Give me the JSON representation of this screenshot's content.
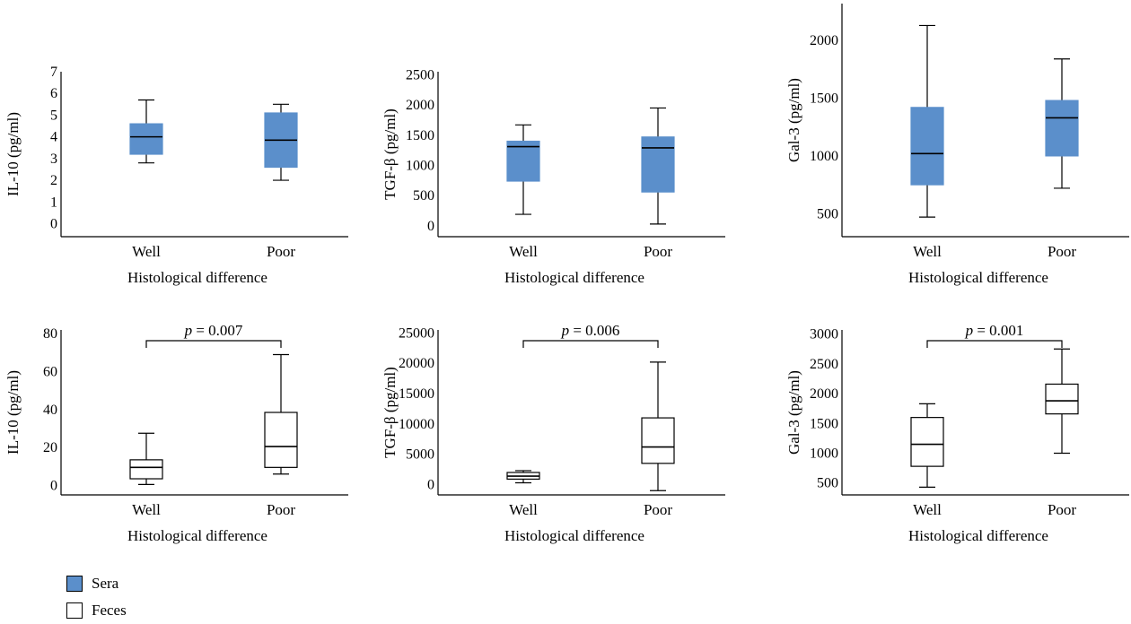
{
  "colors": {
    "sera": "#5b8fcb",
    "feces": "#ffffff",
    "stroke": "#000000"
  },
  "legend": {
    "items": [
      {
        "label": "Sera",
        "color": "#5b8fcb"
      },
      {
        "label": "Feces",
        "color": "#ffffff"
      }
    ]
  },
  "chart_data": [
    {
      "type": "box",
      "group": "sera",
      "ylabel": "IL-10 (pg/ml)",
      "xlabel": "Histological difference",
      "categories": [
        "Well",
        "Poor"
      ],
      "ylim": [
        -0.6,
        7
      ],
      "yticks": [
        0,
        1,
        2,
        3,
        4,
        5,
        6,
        7
      ],
      "boxes": [
        {
          "category": "Well",
          "min": 2.8,
          "q1": 3.2,
          "median": 4.0,
          "q3": 4.6,
          "max": 5.7
        },
        {
          "category": "Poor",
          "min": 2.0,
          "q1": 2.6,
          "median": 3.85,
          "q3": 5.1,
          "max": 5.5
        }
      ],
      "annotation": null
    },
    {
      "type": "box",
      "group": "sera",
      "ylabel": "TGF-β (pg/ml)",
      "xlabel": "Histological difference",
      "categories": [
        "Well",
        "Poor"
      ],
      "ylim": [
        -180,
        2550
      ],
      "yticks": [
        0,
        500,
        1000,
        1500,
        2000,
        2500
      ],
      "boxes": [
        {
          "category": "Well",
          "min": 190,
          "q1": 740,
          "median": 1310,
          "q3": 1400,
          "max": 1670
        },
        {
          "category": "Poor",
          "min": 30,
          "q1": 560,
          "median": 1290,
          "q3": 1470,
          "max": 1950
        }
      ],
      "annotation": null
    },
    {
      "type": "box",
      "group": "sera",
      "ylabel": "Gal-3 (pg/ml)",
      "xlabel": "Histological difference",
      "categories": [
        "Well",
        "Poor"
      ],
      "ylim": [
        300,
        2320
      ],
      "yticks": [
        500,
        1000,
        1500,
        2000
      ],
      "boxes": [
        {
          "category": "Well",
          "min": 470,
          "q1": 750,
          "median": 1020,
          "q3": 1420,
          "max": 2130
        },
        {
          "category": "Poor",
          "min": 720,
          "q1": 1000,
          "median": 1330,
          "q3": 1480,
          "max": 1840
        }
      ],
      "annotation": null
    },
    {
      "type": "box",
      "group": "feces",
      "ylabel": "IL-10 (pg/ml)",
      "xlabel": "Histological difference",
      "categories": [
        "Well",
        "Poor"
      ],
      "ylim": [
        -5,
        82
      ],
      "yticks": [
        0,
        20,
        40,
        60,
        80
      ],
      "boxes": [
        {
          "category": "Well",
          "min": 0.5,
          "q1": 3.5,
          "median": 9.5,
          "q3": 13.5,
          "max": 27.5
        },
        {
          "category": "Poor",
          "min": 6,
          "q1": 9.5,
          "median": 20.5,
          "q3": 38.5,
          "max": 69
        }
      ],
      "annotation": {
        "text": "p = 0.007",
        "p_label": "p",
        "p_value": "= 0.007"
      }
    },
    {
      "type": "box",
      "group": "feces",
      "ylabel": "TGF-β (pg/ml)",
      "xlabel": "Histological difference",
      "categories": [
        "Well",
        "Poor"
      ],
      "ylim": [
        -1700,
        25500
      ],
      "yticks": [
        0,
        5000,
        10000,
        15000,
        20000,
        25000
      ],
      "boxes": [
        {
          "category": "Well",
          "min": 300,
          "q1": 900,
          "median": 1400,
          "q3": 2000,
          "max": 2300
        },
        {
          "category": "Poor",
          "min": -1000,
          "q1": 3500,
          "median": 6200,
          "q3": 11000,
          "max": 20200
        }
      ],
      "annotation": {
        "text": "p = 0.006",
        "p_label": "p",
        "p_value": "= 0.006"
      }
    },
    {
      "type": "box",
      "group": "feces",
      "ylabel": "Gal-3 (pg/ml)",
      "xlabel": "Histological difference",
      "categories": [
        "Well",
        "Poor"
      ],
      "ylim": [
        300,
        3070
      ],
      "yticks": [
        500,
        1000,
        1500,
        2000,
        2500,
        3000
      ],
      "boxes": [
        {
          "category": "Well",
          "min": 430,
          "q1": 780,
          "median": 1150,
          "q3": 1600,
          "max": 1830
        },
        {
          "category": "Poor",
          "min": 1000,
          "q1": 1660,
          "median": 1880,
          "q3": 2160,
          "max": 2750
        }
      ],
      "annotation": {
        "text": "p = 0.001",
        "p_label": "p",
        "p_value": "= 0.001"
      }
    }
  ]
}
